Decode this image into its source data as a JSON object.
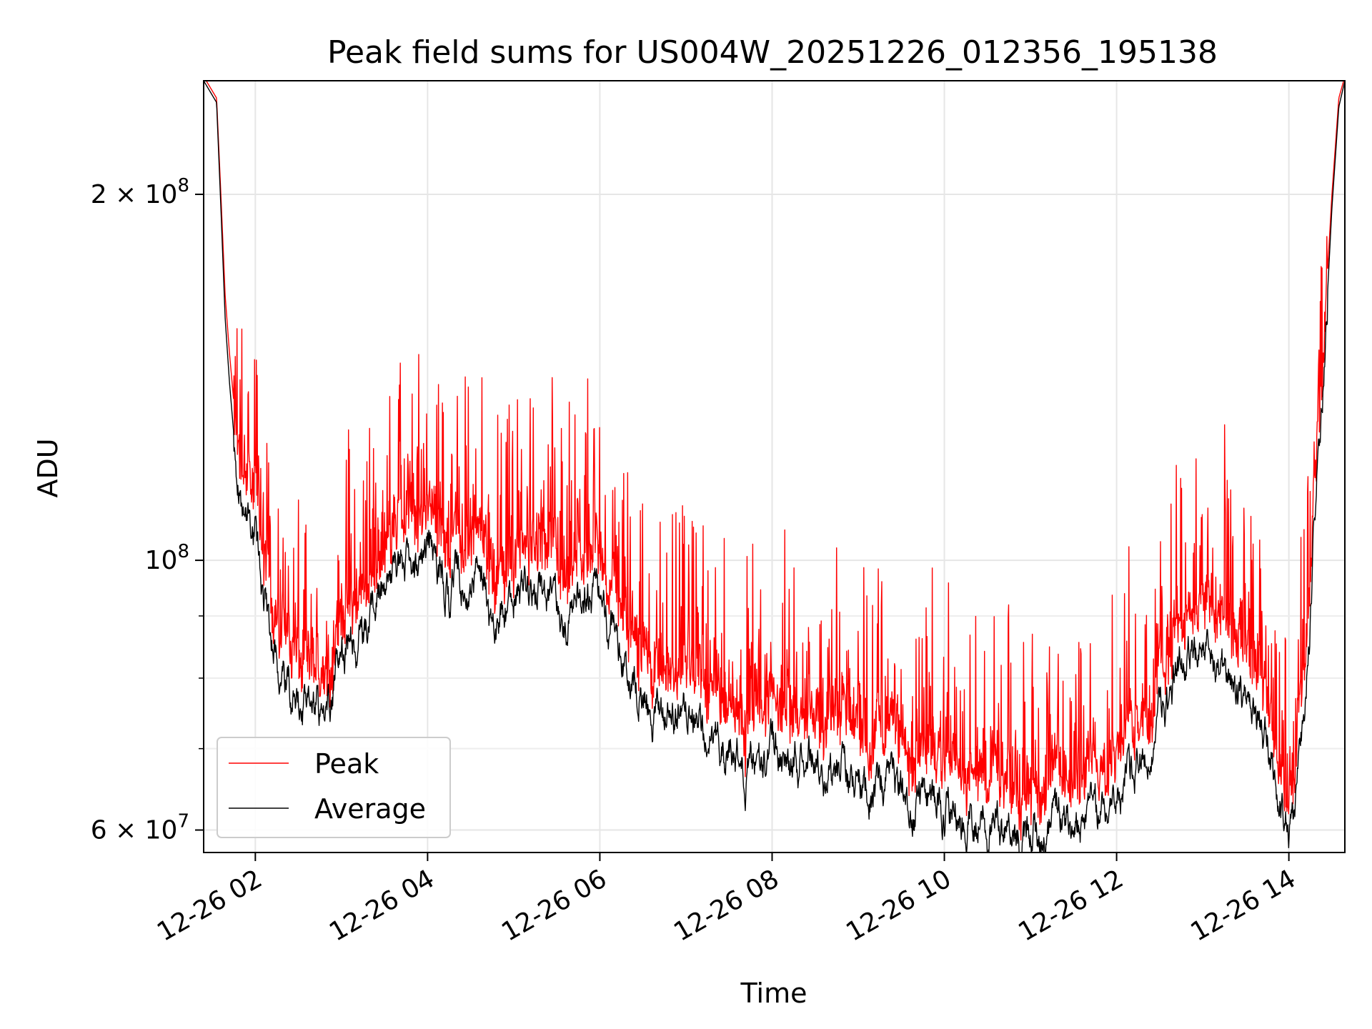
{
  "chart_data": {
    "type": "line",
    "title": "Peak field sums for US004W_20251226_012356_195138",
    "xlabel": "Time",
    "ylabel": "ADU",
    "yscale": "log",
    "ylim": [
      57500000,
      248000000
    ],
    "xlim_hours": [
      1.4,
      14.65
    ],
    "grid": true,
    "x_ticks": [
      {
        "hour": 2,
        "label": "12-26 02"
      },
      {
        "hour": 4,
        "label": "12-26 04"
      },
      {
        "hour": 6,
        "label": "12-26 06"
      },
      {
        "hour": 8,
        "label": "12-26 08"
      },
      {
        "hour": 10,
        "label": "12-26 10"
      },
      {
        "hour": 12,
        "label": "12-26 12"
      },
      {
        "hour": 14,
        "label": "12-26 14"
      }
    ],
    "y_major_ticks": [
      {
        "value": 60000000,
        "base": "6",
        "exp": "7"
      },
      {
        "value": 100000000,
        "base": "",
        "exp": "8"
      },
      {
        "value": 200000000,
        "base": "2",
        "exp": "8"
      }
    ],
    "y_minor_ticks": [
      70000000,
      80000000,
      90000000
    ],
    "legend": {
      "position": "lower-left",
      "entries": [
        "Peak",
        "Average"
      ]
    },
    "series": [
      {
        "name": "Peak",
        "color": "#ff0000",
        "hours": [
          1.4,
          1.55,
          1.6,
          1.65,
          1.7,
          1.75,
          1.8,
          1.85,
          1.9,
          2.0,
          2.1,
          2.2,
          2.3,
          2.45,
          2.6,
          2.75,
          2.9,
          3.0,
          3.2,
          3.35,
          3.5,
          3.7,
          3.85,
          4.0,
          4.2,
          4.4,
          4.6,
          4.8,
          5.0,
          5.2,
          5.4,
          5.6,
          5.8,
          6.0,
          6.2,
          6.4,
          6.6,
          6.8,
          7.0,
          7.2,
          7.4,
          7.6,
          7.8,
          8.0,
          8.2,
          8.4,
          8.6,
          8.8,
          9.0,
          9.2,
          9.4,
          9.6,
          9.8,
          10.0,
          10.2,
          10.4,
          10.6,
          10.8,
          11.0,
          11.2,
          11.4,
          11.6,
          11.8,
          12.0,
          12.2,
          12.4,
          12.6,
          12.8,
          13.0,
          13.2,
          13.4,
          13.6,
          13.8,
          13.95,
          14.05,
          14.2,
          14.3,
          14.4,
          14.5,
          14.58,
          14.65
        ],
        "values": [
          250000000,
          240000000,
          200000000,
          165000000,
          148000000,
          135000000,
          127000000,
          120000000,
          117000000,
          112000000,
          100000000,
          92000000,
          88000000,
          86000000,
          80000000,
          80000000,
          84000000,
          90000000,
          93000000,
          96000000,
          102000000,
          108000000,
          104000000,
          110000000,
          103000000,
          106000000,
          104000000,
          96000000,
          100000000,
          102000000,
          100000000,
          96000000,
          101000000,
          98000000,
          94000000,
          86000000,
          84000000,
          79000000,
          82000000,
          79000000,
          77000000,
          75000000,
          74000000,
          76000000,
          74000000,
          77000000,
          73000000,
          75000000,
          72000000,
          71000000,
          73000000,
          68000000,
          70000000,
          69000000,
          68000000,
          67000000,
          66000000,
          64000000,
          65000000,
          66000000,
          65000000,
          66000000,
          67000000,
          70000000,
          74000000,
          78000000,
          84000000,
          90000000,
          92000000,
          90000000,
          86000000,
          80000000,
          76000000,
          66000000,
          64000000,
          82000000,
          115000000,
          150000000,
          200000000,
          240000000,
          250000000
        ]
      },
      {
        "name": "Average",
        "color": "#000000",
        "hours": [
          1.4,
          1.55,
          1.6,
          1.65,
          1.7,
          1.75,
          1.8,
          1.85,
          1.9,
          2.0,
          2.1,
          2.2,
          2.3,
          2.45,
          2.6,
          2.75,
          2.9,
          3.0,
          3.2,
          3.35,
          3.5,
          3.7,
          3.85,
          4.0,
          4.2,
          4.4,
          4.6,
          4.8,
          5.0,
          5.2,
          5.4,
          5.6,
          5.8,
          6.0,
          6.2,
          6.4,
          6.6,
          6.8,
          7.0,
          7.2,
          7.4,
          7.6,
          7.8,
          8.0,
          8.2,
          8.4,
          8.6,
          8.8,
          9.0,
          9.2,
          9.4,
          9.6,
          9.8,
          10.0,
          10.2,
          10.4,
          10.6,
          10.8,
          11.0,
          11.2,
          11.4,
          11.6,
          11.8,
          12.0,
          12.2,
          12.4,
          12.6,
          12.8,
          13.0,
          13.2,
          13.4,
          13.6,
          13.8,
          13.95,
          14.05,
          14.2,
          14.3,
          14.4,
          14.5,
          14.58,
          14.65
        ],
        "values": [
          248000000,
          238000000,
          195000000,
          158000000,
          140000000,
          127000000,
          118000000,
          112000000,
          108000000,
          104000000,
          93000000,
          86000000,
          81000000,
          78000000,
          74000000,
          75000000,
          79000000,
          84000000,
          86000000,
          90000000,
          95000000,
          100000000,
          96000000,
          102000000,
          95000000,
          97000000,
          95000000,
          88000000,
          93000000,
          95000000,
          92000000,
          88000000,
          94000000,
          91000000,
          86000000,
          79000000,
          77000000,
          73000000,
          75000000,
          72000000,
          70000000,
          69000000,
          67000000,
          69000000,
          67000000,
          70000000,
          66000000,
          68000000,
          65000000,
          65000000,
          66000000,
          62000000,
          64000000,
          62000000,
          62000000,
          61000000,
          60000000,
          59000000,
          60000000,
          61000000,
          60000000,
          61000000,
          62000000,
          64000000,
          68000000,
          72000000,
          78000000,
          83000000,
          85000000,
          82000000,
          78000000,
          73000000,
          70000000,
          62000000,
          60000000,
          76000000,
          108000000,
          142000000,
          195000000,
          236000000,
          248000000
        ]
      }
    ],
    "notes": "Peak series shows dense narrow spikes above the Average series throughout; both series share the overall trend."
  }
}
